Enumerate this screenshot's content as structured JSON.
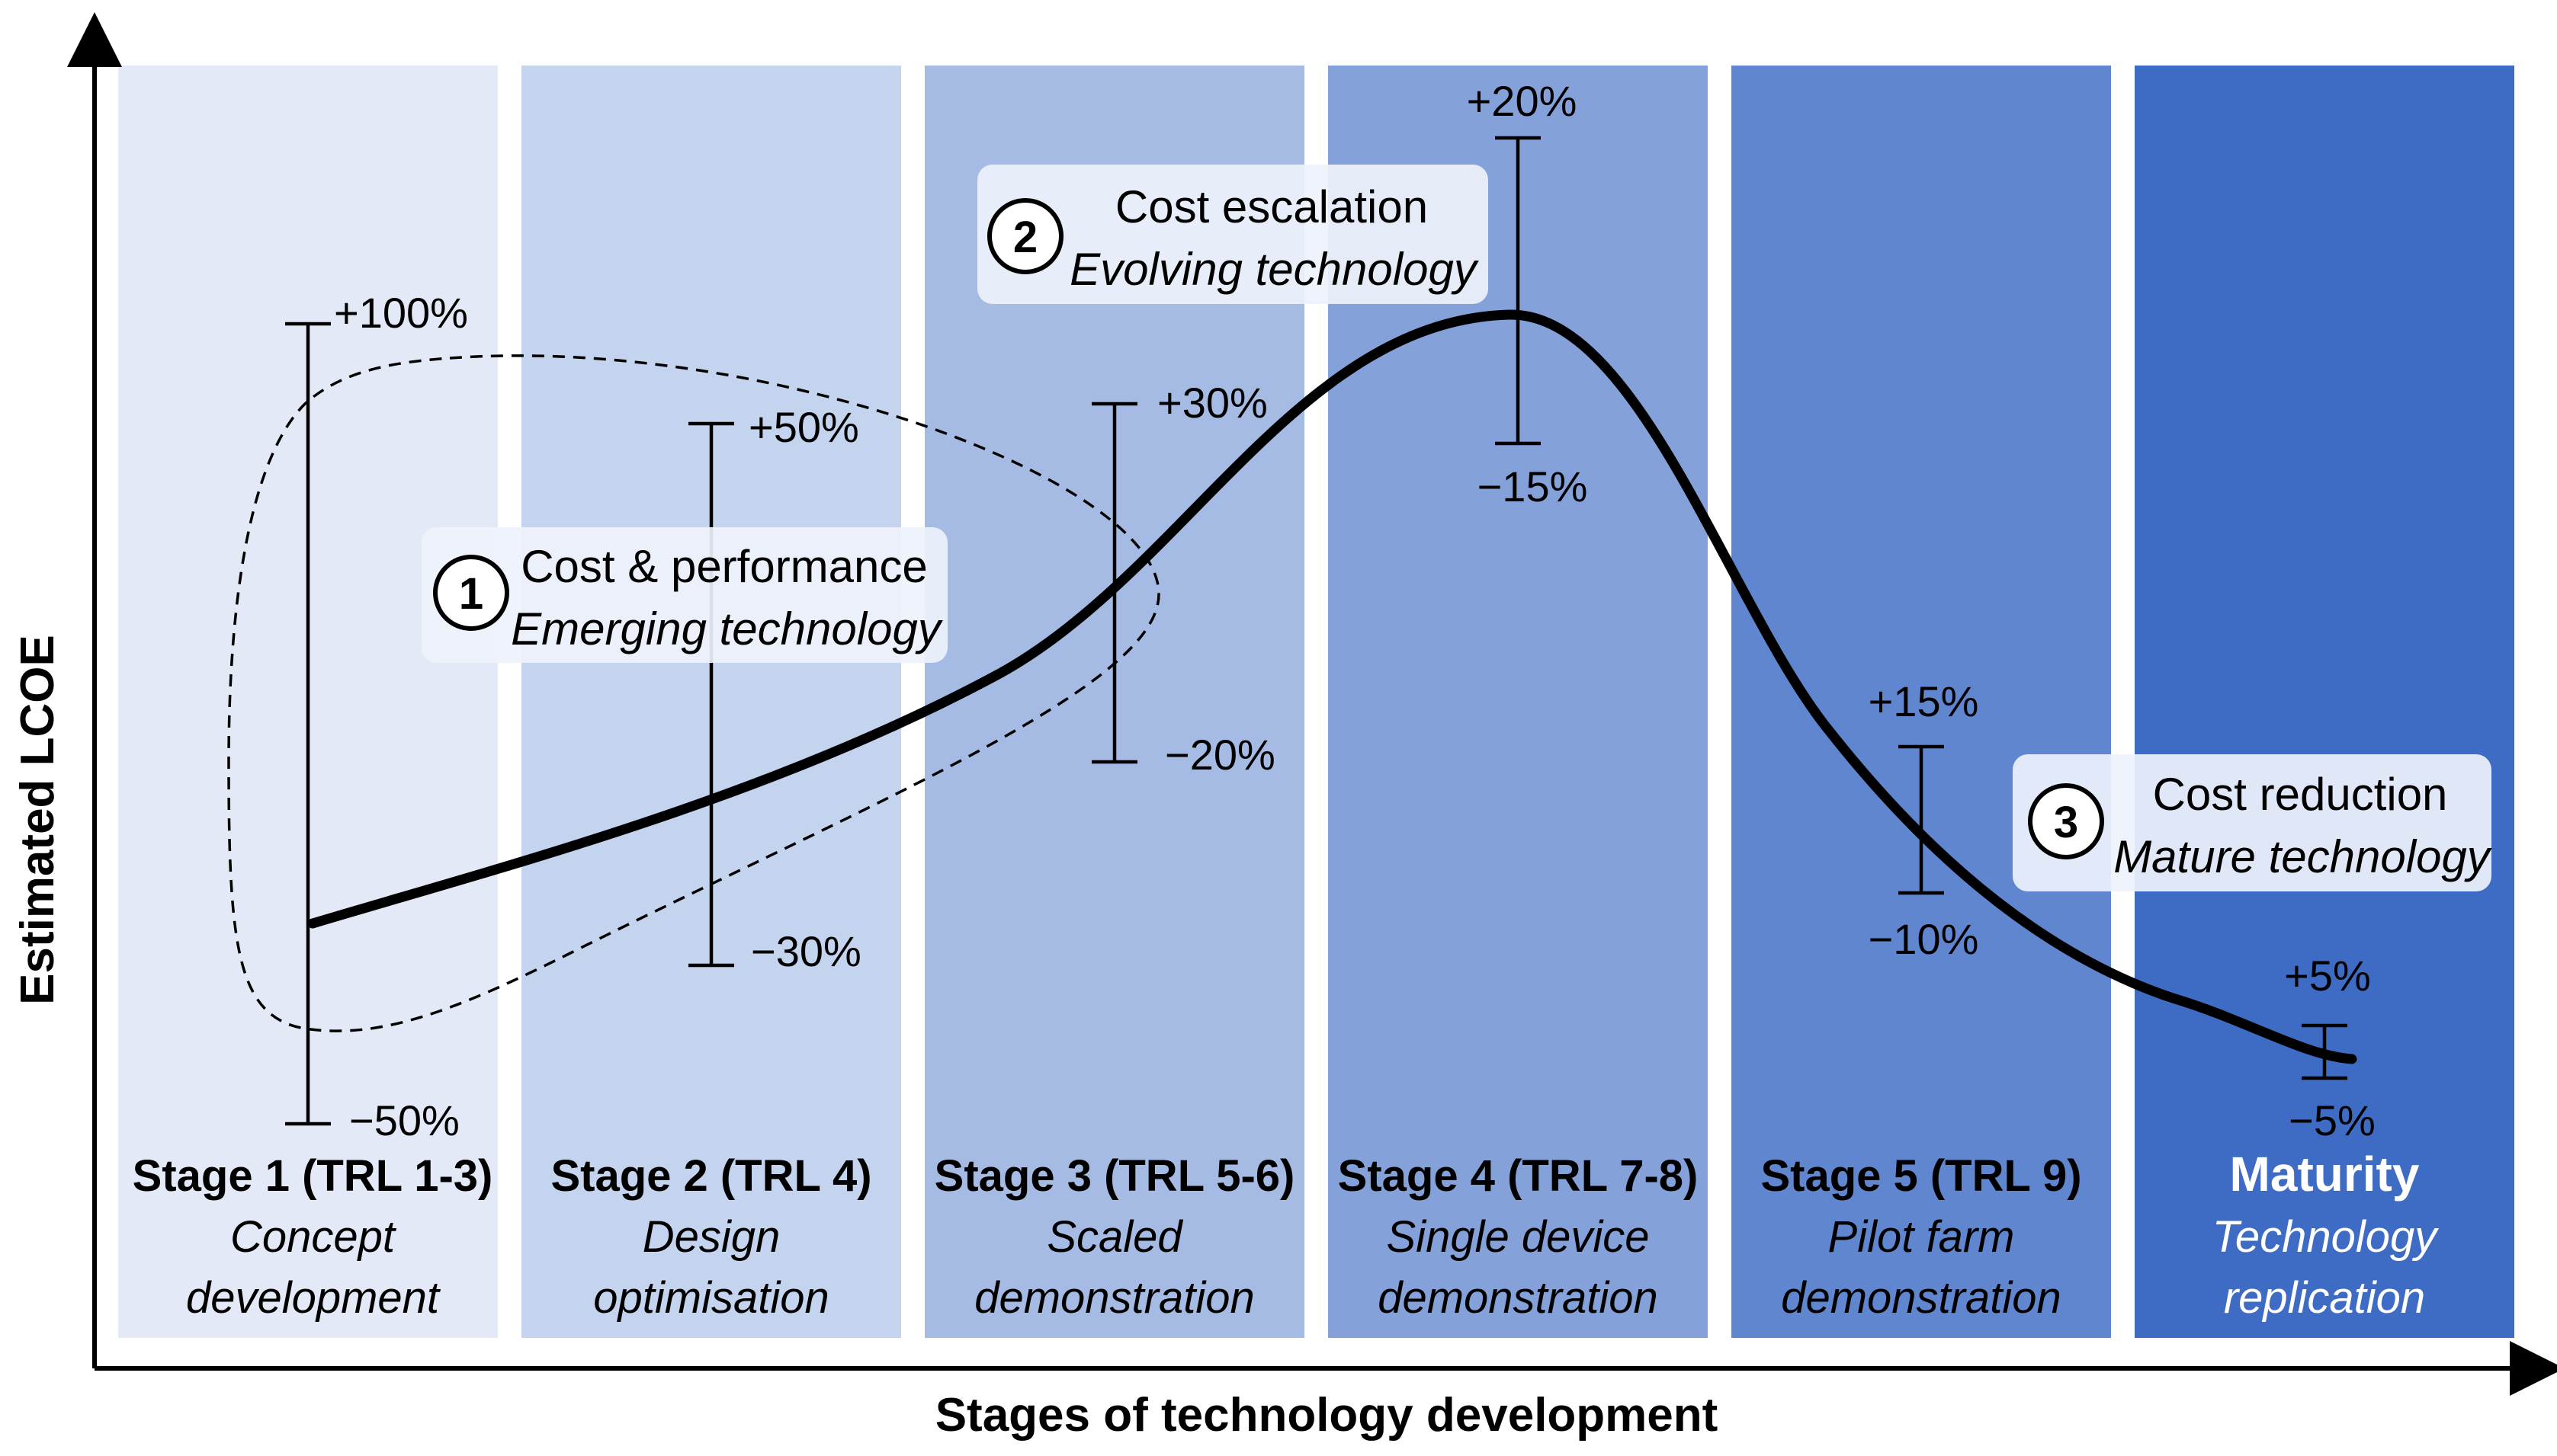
{
  "axes": {
    "y_label": "Estimated LCOE",
    "x_label": "Stages of technology development"
  },
  "colors": {
    "stage_bands": [
      "#e3e9f6",
      "#c4d3ee",
      "#a5bbe4",
      "#84a1da",
      "#6086d0",
      "#3e6cc4"
    ],
    "annotation_box": "#eef2fb",
    "curve": "#000000",
    "maturity_text": "#ffffff"
  },
  "stages": [
    {
      "title": "Stage 1 (TRL 1-3)",
      "line1": "Concept",
      "line2": "development",
      "range_high": "+100%",
      "range_low": "−50%"
    },
    {
      "title": "Stage 2 (TRL 4)",
      "line1": "Design",
      "line2": "optimisation",
      "range_high": "+50%",
      "range_low": "−30%"
    },
    {
      "title": "Stage 3 (TRL 5-6)",
      "line1": "Scaled",
      "line2": "demonstration",
      "range_high": "+30%",
      "range_low": "−20%"
    },
    {
      "title": "Stage 4 (TRL 7-8)",
      "line1": "Single device",
      "line2": "demonstration",
      "range_high": "+20%",
      "range_low": "−15%"
    },
    {
      "title": "Stage 5 (TRL 9)",
      "line1": "Pilot farm",
      "line2": "demonstration",
      "range_high": "+15%",
      "range_low": "−10%"
    },
    {
      "title": "Maturity",
      "line1": "Technology",
      "line2": "replication",
      "range_high": "+5%",
      "range_low": "−5%"
    }
  ],
  "annotations": [
    {
      "number": "1",
      "title": "Cost & performance",
      "subtitle": "Emerging technology"
    },
    {
      "number": "2",
      "title": "Cost escalation",
      "subtitle": "Evolving technology"
    },
    {
      "number": "3",
      "title": "Cost reduction",
      "subtitle": "Mature technology"
    }
  ]
}
